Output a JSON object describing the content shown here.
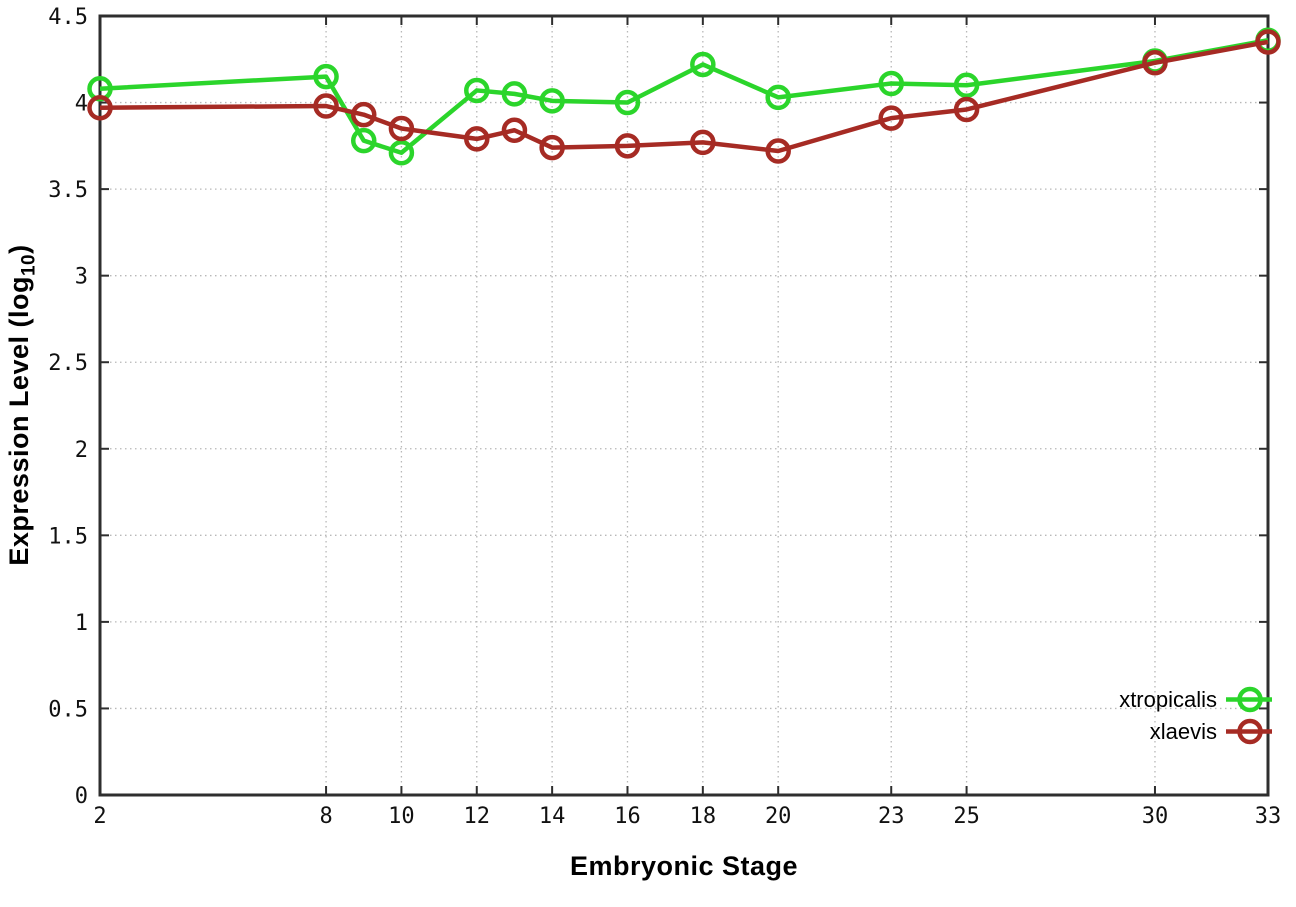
{
  "chart_data": {
    "type": "line",
    "title": "",
    "xlabel": "Embryonic Stage",
    "ylabel": {
      "pre": "Expression Level (log",
      "sub": "10",
      "post": ")"
    },
    "xlim": [
      2,
      33
    ],
    "ylim": [
      0,
      4.5
    ],
    "grid": "dotted-both-axes",
    "legend_position": "inside-bottom-right",
    "marker": "open-circle",
    "x": [
      2,
      8,
      9,
      10,
      12,
      13,
      14,
      16,
      18,
      20,
      23,
      25,
      30,
      33
    ],
    "x_tick_values": [
      2,
      8,
      10,
      12,
      14,
      16,
      18,
      20,
      23,
      25,
      30,
      33
    ],
    "x_tick_labels": [
      "2",
      "8",
      "10",
      "12",
      "14",
      "16",
      "18",
      "20",
      "23",
      "25",
      "30",
      "33"
    ],
    "y_tick_values": [
      0,
      0.5,
      1,
      1.5,
      2,
      2.5,
      3,
      3.5,
      4,
      4.5
    ],
    "y_tick_labels": [
      "0",
      "0.5",
      "1",
      "1.5",
      "2",
      "2.5",
      "3",
      "3.5",
      "4",
      "4.5"
    ],
    "series": [
      {
        "name": "xtropicalis",
        "color": "#2bd52b",
        "values": [
          4.08,
          4.15,
          3.78,
          3.71,
          4.07,
          4.05,
          4.01,
          4.0,
          4.22,
          4.03,
          4.11,
          4.1,
          4.24,
          4.36
        ]
      },
      {
        "name": "xlaevis",
        "color": "#a62b24",
        "values": [
          3.97,
          3.98,
          3.93,
          3.85,
          3.79,
          3.84,
          3.74,
          3.75,
          3.77,
          3.72,
          3.91,
          3.96,
          4.23,
          4.35
        ]
      }
    ]
  },
  "colors": {
    "axis": "#2e2e2e",
    "grid": "#b8b8b8",
    "tick_text": "#111111",
    "background": "#ffffff"
  }
}
